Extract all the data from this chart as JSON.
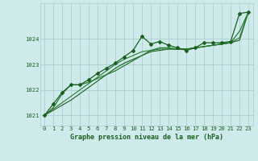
{
  "xlabel": "Graphe pression niveau de la mer (hPa)",
  "bg_color": "#ceeaea",
  "grid_color": "#aacece",
  "line_color_dark": "#1a6020",
  "line_color_med": "#2a7a30",
  "xlim": [
    -0.5,
    23.5
  ],
  "ylim": [
    1020.6,
    1025.4
  ],
  "yticks": [
    1021,
    1022,
    1023,
    1024
  ],
  "xticks": [
    0,
    1,
    2,
    3,
    4,
    5,
    6,
    7,
    8,
    9,
    10,
    11,
    12,
    13,
    14,
    15,
    16,
    17,
    18,
    19,
    20,
    21,
    22,
    23
  ],
  "series1_x": [
    0,
    1,
    2,
    3,
    4,
    5,
    6,
    7,
    8,
    9,
    10,
    11,
    12,
    13,
    14,
    15,
    16,
    17,
    18,
    19,
    20,
    21,
    22,
    23
  ],
  "series1_y": [
    1021.0,
    1021.45,
    1021.9,
    1022.2,
    1022.2,
    1022.4,
    1022.65,
    1022.85,
    1023.05,
    1023.3,
    1023.55,
    1024.1,
    1023.8,
    1023.9,
    1023.75,
    1023.65,
    1023.55,
    1023.65,
    1023.85,
    1023.85,
    1023.85,
    1023.9,
    1025.0,
    1025.05
  ],
  "series2_x": [
    0,
    1,
    2,
    3,
    4,
    5,
    6,
    7,
    8,
    9,
    10,
    11,
    12,
    13,
    14,
    15,
    16,
    17,
    18,
    19,
    20,
    21,
    22,
    23
  ],
  "series2_y": [
    1021.0,
    1021.3,
    1021.85,
    1022.2,
    1022.2,
    1022.3,
    1022.45,
    1022.6,
    1022.75,
    1022.95,
    1023.15,
    1023.35,
    1023.55,
    1023.65,
    1023.65,
    1023.6,
    1023.6,
    1023.65,
    1023.7,
    1023.75,
    1023.8,
    1023.85,
    1024.3,
    1025.05
  ],
  "series3_x": [
    0,
    1,
    2,
    3,
    4,
    5,
    6,
    7,
    8,
    9,
    10,
    11,
    12,
    13,
    14,
    15,
    16,
    17,
    18,
    19,
    20,
    21,
    22,
    23
  ],
  "series3_y": [
    1021.0,
    1021.25,
    1021.5,
    1021.75,
    1022.0,
    1022.25,
    1022.5,
    1022.75,
    1023.0,
    1023.2,
    1023.35,
    1023.5,
    1023.55,
    1023.6,
    1023.6,
    1023.6,
    1023.6,
    1023.65,
    1023.7,
    1023.75,
    1023.8,
    1023.85,
    1024.05,
    1025.05
  ],
  "series4_x": [
    0,
    1,
    2,
    3,
    4,
    5,
    6,
    7,
    8,
    9,
    10,
    11,
    12,
    13,
    14,
    15,
    16,
    17,
    18,
    19,
    20,
    21,
    22,
    23
  ],
  "series4_y": [
    1021.0,
    1021.2,
    1021.4,
    1021.6,
    1021.85,
    1022.1,
    1022.35,
    1022.6,
    1022.85,
    1023.05,
    1023.2,
    1023.35,
    1023.5,
    1023.55,
    1023.6,
    1023.6,
    1023.6,
    1023.65,
    1023.7,
    1023.75,
    1023.8,
    1023.85,
    1023.95,
    1025.05
  ]
}
